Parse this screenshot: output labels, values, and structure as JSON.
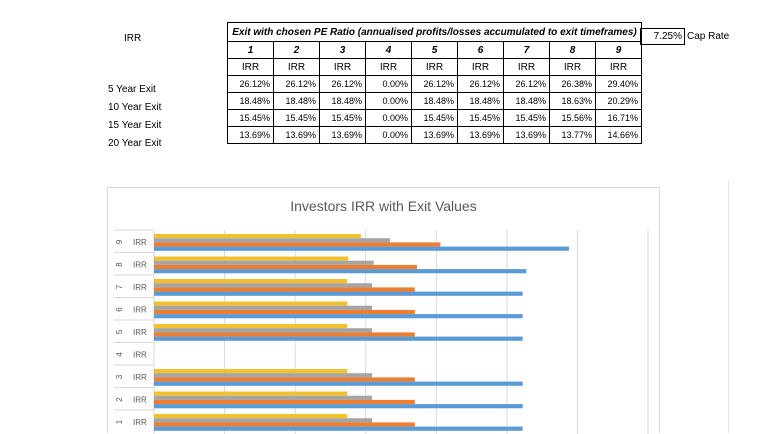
{
  "sheet": {
    "irr_label": "IRR",
    "table_title": "Exit with chosen PE Ratio (annualised profits/losses accumulated to exit timeframes)",
    "cap_rate_value": "7.25%",
    "cap_rate_label": "Cap Rate",
    "columns": [
      "1",
      "2",
      "3",
      "4",
      "5",
      "6",
      "7",
      "8",
      "9"
    ],
    "subheader": [
      "IRR",
      "IRR",
      "IRR",
      "IRR",
      "IRR",
      "IRR",
      "IRR",
      "IRR",
      "IRR"
    ],
    "rows": [
      {
        "label": "5 Year Exit",
        "values": [
          "26.12%",
          "26.12%",
          "26.12%",
          "0.00%",
          "26.12%",
          "26.12%",
          "26.12%",
          "26.38%",
          "29.40%"
        ]
      },
      {
        "label": "10 Year Exit",
        "values": [
          "18.48%",
          "18.48%",
          "18.48%",
          "0.00%",
          "18.48%",
          "18.48%",
          "18.48%",
          "18.63%",
          "20.29%"
        ]
      },
      {
        "label": "15 Year Exit",
        "values": [
          "15.45%",
          "15.45%",
          "15.45%",
          "0.00%",
          "15.45%",
          "15.45%",
          "15.45%",
          "15.56%",
          "16.71%"
        ]
      },
      {
        "label": "20 Year Exit",
        "values": [
          "13.69%",
          "13.69%",
          "13.69%",
          "0.00%",
          "13.69%",
          "13.69%",
          "13.69%",
          "13.77%",
          "14.66%"
        ]
      }
    ]
  },
  "chart_data": {
    "type": "bar",
    "orientation": "horizontal",
    "title": "Investors IRR with Exit Values",
    "categories": [
      "9",
      "8",
      "7",
      "6",
      "5",
      "4",
      "3",
      "2",
      "1"
    ],
    "sub_label": "IRR",
    "series": [
      {
        "color": "#f2c12e",
        "values": [
          0.1466,
          0.1377,
          0.1369,
          0.1369,
          0.1369,
          0,
          0.1369,
          0.1369,
          0.1369
        ]
      },
      {
        "color": "#a5a5a5",
        "values": [
          0.1671,
          0.1556,
          0.1545,
          0.1545,
          0.1545,
          0,
          0.1545,
          0.1545,
          0.1545
        ]
      },
      {
        "color": "#ed7d31",
        "values": [
          0.2029,
          0.1863,
          0.1848,
          0.1848,
          0.1848,
          0,
          0.1848,
          0.1848,
          0.1848
        ]
      },
      {
        "color": "#5b9bd5",
        "values": [
          0.294,
          0.2638,
          0.2612,
          0.2612,
          0.2612,
          0,
          0.2612,
          0.2612,
          0.2612
        ]
      }
    ],
    "xlim": [
      0,
      0.35
    ],
    "grid": true
  }
}
